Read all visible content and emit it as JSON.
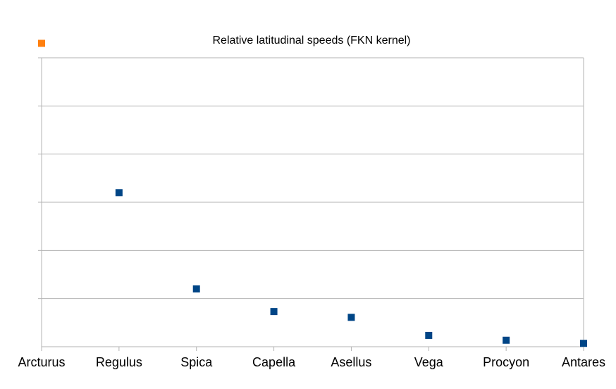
{
  "chart_data": {
    "type": "scatter",
    "title": "Relative latitudinal speeds (FKN kernel)",
    "xlabel": "",
    "ylabel": "",
    "categories": [
      "Arcturus",
      "Regulus",
      "Spica",
      "Capella",
      "Asellus",
      "Vega",
      "Procyon",
      "Antares"
    ],
    "values": [
      1.26,
      0.64,
      0.24,
      0.146,
      0.122,
      0.047,
      0.027,
      0.014
    ],
    "point_colors": [
      "#ff7f0e",
      "#004586",
      "#004586",
      "#004586",
      "#004586",
      "#004586",
      "#004586",
      "#004586"
    ],
    "ylim": [
      0,
      1.2
    ],
    "y_gridlines": [
      0.2,
      0.4,
      0.6,
      0.8,
      1.0,
      1.2
    ],
    "y_tick_labels_shown": false,
    "grid": true,
    "legend": "none"
  }
}
